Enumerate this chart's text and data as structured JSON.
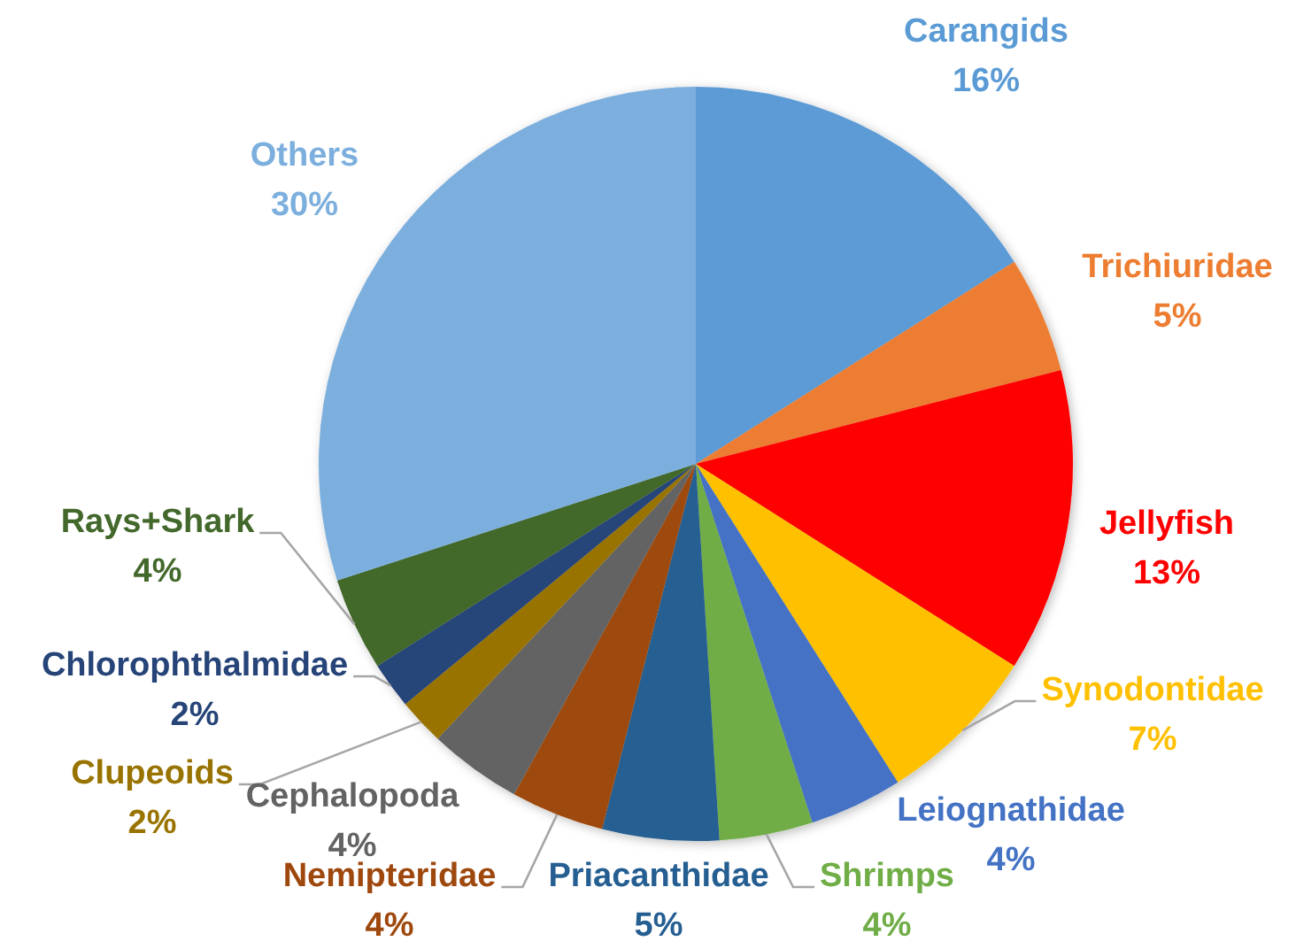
{
  "chart_data": {
    "type": "pie",
    "categories": [
      "Carangids",
      "Trichiuridae",
      "Jellyfish",
      "Synodontidae",
      "Leiognathidae",
      "Shrimps",
      "Priacanthidae",
      "Nemipteridae",
      "Cephalopoda",
      "Clupeoids",
      "Chlorophthalmidae",
      "Rays+Shark",
      "Others"
    ],
    "values": [
      16,
      5,
      13,
      7,
      4,
      4,
      5,
      4,
      4,
      2,
      2,
      4,
      30
    ],
    "value_labels": [
      "16%",
      "5%",
      "13%",
      "7%",
      "4%",
      "4%",
      "5%",
      "4%",
      "4%",
      "2%",
      "2%",
      "4%",
      "30%"
    ],
    "colors": [
      "#5b9bd5",
      "#ed7d31",
      "#ff0000",
      "#ffc000",
      "#4472c4",
      "#70ad47",
      "#255e91",
      "#9e480e",
      "#636363",
      "#997300",
      "#264478",
      "#43682b",
      "#7cafdd"
    ]
  }
}
